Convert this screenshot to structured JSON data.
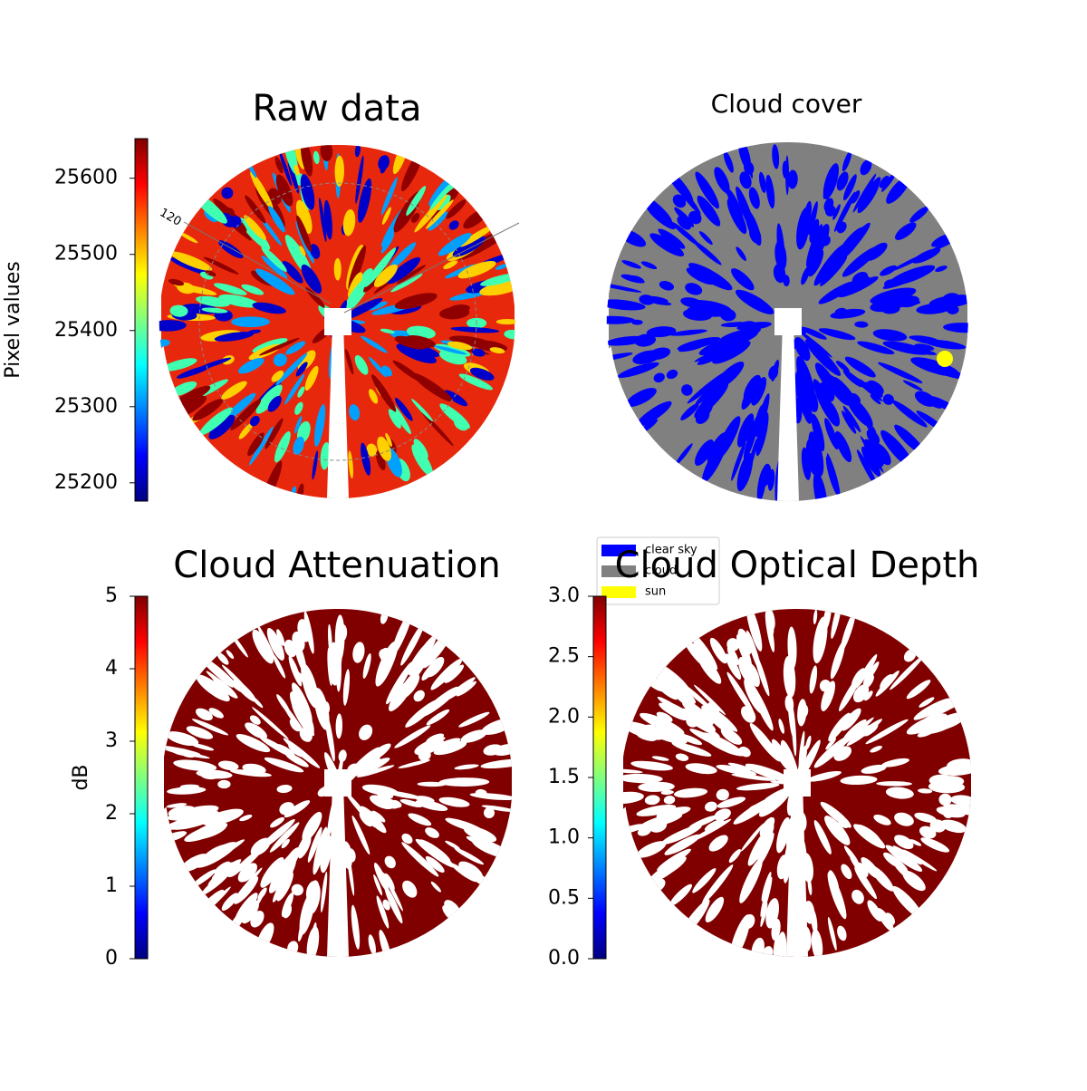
{
  "chart_data": [
    {
      "type": "image",
      "title": "Raw data",
      "colorbar_label": "Pixel values",
      "cmap": "jet",
      "clim": [
        25176,
        25652
      ],
      "cticks": [
        25200,
        25300,
        25400,
        25500,
        25600
      ],
      "annotations": [
        "120"
      ]
    },
    {
      "type": "image",
      "title": "Cloud cover",
      "legend": [
        {
          "name": "clear sky",
          "color": "#0000ff"
        },
        {
          "name": "cloud",
          "color": "#808080"
        },
        {
          "name": "sun",
          "color": "#ffff00"
        }
      ]
    },
    {
      "type": "image",
      "title": "Cloud Attenuation",
      "colorbar_label": "dB",
      "cmap": "jet",
      "clim": [
        0,
        5
      ],
      "cticks": [
        0,
        1,
        2,
        3,
        4,
        5
      ]
    },
    {
      "type": "image",
      "title": "Cloud Optical Depth",
      "cmap": "jet",
      "clim": [
        0,
        3
      ],
      "cticks": [
        {
          "value": 0,
          "label": "0.0"
        },
        0.5,
        {
          "value": 1,
          "label": "1.0"
        },
        1.5,
        {
          "value": 2,
          "label": "2.0"
        },
        2.5,
        {
          "value": 3,
          "label": "3.0"
        }
      ]
    }
  ]
}
